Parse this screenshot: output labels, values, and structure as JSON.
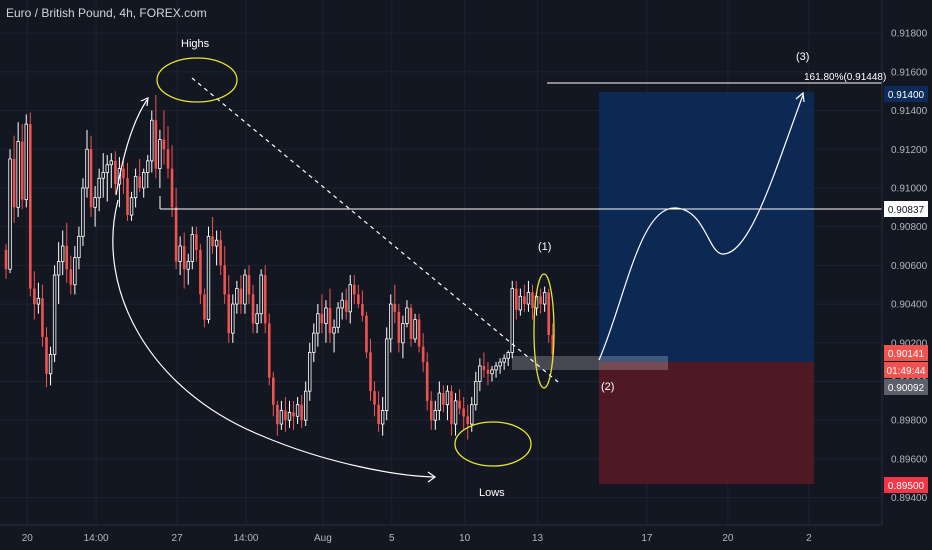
{
  "chart_title": "Euro / British Pound, 4h, FOREX.com",
  "colors": {
    "background": "#131722",
    "grid": "#1f2331",
    "up": "#ffffff",
    "down": "#ef5350",
    "text": "#b2b5be",
    "yellow": "#e6e62e",
    "target_zone": "#0c2d5c",
    "stop_zone": "#5a1a24",
    "level_line": "#ffffff"
  },
  "annotations": {
    "highs": "Highs",
    "lows": "Lows",
    "point1": "(1)",
    "point2": "(2)",
    "point3": "(3)",
    "fib": "161.80%(0.91448)"
  },
  "price_tags": {
    "level": "0.90837",
    "target": "0.91400",
    "last": "0.90141",
    "timer": "01:49:44",
    "bid": "0.90092",
    "stop": "0.89500"
  },
  "chart_data": {
    "type": "candlestick",
    "title": "Euro / British Pound, 4h, FOREX.com",
    "ylim": [
      0.8931,
      0.9193
    ],
    "y_ticks": [
      "0.91800",
      "0.91600",
      "0.91400",
      "0.91200",
      "0.91000",
      "0.90800",
      "0.90600",
      "0.90400",
      "0.90200",
      "0.90000",
      "0.89800",
      "0.89600",
      "0.89400"
    ],
    "x_ticks": [
      {
        "label": "20",
        "bar": 5
      },
      {
        "label": "14:00",
        "bar": 22
      },
      {
        "label": "27",
        "bar": 42
      },
      {
        "label": "14:00",
        "bar": 59
      },
      {
        "label": "Aug",
        "bar": 78
      },
      {
        "label": "5",
        "bar": 95
      },
      {
        "label": "10",
        "bar": 113
      },
      {
        "label": "13",
        "bar": 131
      },
      {
        "label": "17",
        "bar": 158
      },
      {
        "label": "20",
        "bar": 178
      },
      {
        "label": "2",
        "bar": 198
      }
    ],
    "candles": [
      [
        0.9068,
        0.9071,
        0.9053,
        0.9058
      ],
      [
        0.9058,
        0.912,
        0.9056,
        0.9115
      ],
      [
        0.9115,
        0.9127,
        0.9082,
        0.909
      ],
      [
        0.909,
        0.9134,
        0.9085,
        0.9124
      ],
      [
        0.9124,
        0.9133,
        0.9089,
        0.9094
      ],
      [
        0.9094,
        0.9138,
        0.909,
        0.9133
      ],
      [
        0.9133,
        0.9139,
        0.9044,
        0.9048
      ],
      [
        0.9048,
        0.9057,
        0.9032,
        0.904
      ],
      [
        0.904,
        0.9051,
        0.9035,
        0.9043
      ],
      [
        0.9043,
        0.905,
        0.9018,
        0.9023
      ],
      [
        0.9023,
        0.9028,
        0.8997,
        0.9004
      ],
      [
        0.9004,
        0.9018,
        0.8998,
        0.9014
      ],
      [
        0.9014,
        0.906,
        0.901,
        0.9055
      ],
      [
        0.9055,
        0.9072,
        0.904,
        0.9062
      ],
      [
        0.9062,
        0.9078,
        0.9055,
        0.907
      ],
      [
        0.907,
        0.9082,
        0.9051,
        0.9058
      ],
      [
        0.9058,
        0.9065,
        0.9045,
        0.905
      ],
      [
        0.905,
        0.907,
        0.9045,
        0.9064
      ],
      [
        0.9064,
        0.908,
        0.9058,
        0.9075
      ],
      [
        0.9075,
        0.9105,
        0.907,
        0.91
      ],
      [
        0.91,
        0.913,
        0.9095,
        0.912
      ],
      [
        0.912,
        0.9127,
        0.9085,
        0.909
      ],
      [
        0.909,
        0.9101,
        0.908,
        0.9095
      ],
      [
        0.9095,
        0.911,
        0.9088,
        0.9105
      ],
      [
        0.9105,
        0.9118,
        0.9095,
        0.9108
      ],
      [
        0.9108,
        0.9117,
        0.9093,
        0.9112
      ],
      [
        0.9112,
        0.9118,
        0.91,
        0.9114
      ],
      [
        0.9114,
        0.9119,
        0.9097,
        0.9102
      ],
      [
        0.9102,
        0.9116,
        0.909,
        0.911
      ],
      [
        0.911,
        0.9114,
        0.9097,
        0.9105
      ],
      [
        0.9105,
        0.9113,
        0.9083,
        0.9086
      ],
      [
        0.9086,
        0.9098,
        0.9083,
        0.9095
      ],
      [
        0.9095,
        0.911,
        0.909,
        0.9106
      ],
      [
        0.9106,
        0.9115,
        0.9098,
        0.91
      ],
      [
        0.91,
        0.911,
        0.9095,
        0.9108
      ],
      [
        0.9108,
        0.9117,
        0.91,
        0.9114
      ],
      [
        0.9114,
        0.914,
        0.9108,
        0.9135
      ],
      [
        0.9135,
        0.9148,
        0.9105,
        0.911
      ],
      [
        0.911,
        0.913,
        0.91,
        0.9125
      ],
      [
        0.9125,
        0.914,
        0.9112,
        0.912
      ],
      [
        0.912,
        0.9132,
        0.9105,
        0.911
      ],
      [
        0.911,
        0.9122,
        0.9085,
        0.909
      ],
      [
        0.909,
        0.91,
        0.9058,
        0.9062
      ],
      [
        0.9062,
        0.9075,
        0.9055,
        0.907
      ],
      [
        0.907,
        0.9077,
        0.9048,
        0.9058
      ],
      [
        0.9058,
        0.9066,
        0.905,
        0.9062
      ],
      [
        0.9062,
        0.908,
        0.9058,
        0.9076
      ],
      [
        0.9076,
        0.908,
        0.9062,
        0.9068
      ],
      [
        0.9068,
        0.9071,
        0.904,
        0.9045
      ],
      [
        0.9045,
        0.9048,
        0.9028,
        0.9032
      ],
      [
        0.9032,
        0.908,
        0.903,
        0.9075
      ],
      [
        0.9075,
        0.9085,
        0.9066,
        0.907
      ],
      [
        0.907,
        0.9078,
        0.906,
        0.9073
      ],
      [
        0.9073,
        0.9078,
        0.9055,
        0.906
      ],
      [
        0.906,
        0.907,
        0.904,
        0.9045
      ],
      [
        0.9045,
        0.9055,
        0.902,
        0.9025
      ],
      [
        0.9025,
        0.9045,
        0.902,
        0.904
      ],
      [
        0.904,
        0.9052,
        0.9035,
        0.9048
      ],
      [
        0.9048,
        0.9055,
        0.9035,
        0.904
      ],
      [
        0.904,
        0.9058,
        0.9035,
        0.9055
      ],
      [
        0.9055,
        0.906,
        0.904,
        0.9045
      ],
      [
        0.9045,
        0.905,
        0.9025,
        0.903
      ],
      [
        0.903,
        0.904,
        0.9025,
        0.9035
      ],
      [
        0.9035,
        0.9058,
        0.903,
        0.9055
      ],
      [
        0.9055,
        0.906,
        0.9025,
        0.903
      ],
      [
        0.903,
        0.9035,
        0.8998,
        0.9002
      ],
      [
        0.9002,
        0.9005,
        0.8982,
        0.8988
      ],
      [
        0.8988,
        0.899,
        0.8972,
        0.8978
      ],
      [
        0.8978,
        0.899,
        0.8975,
        0.8985
      ],
      [
        0.8985,
        0.8992,
        0.8974,
        0.898
      ],
      [
        0.898,
        0.899,
        0.8976,
        0.8984
      ],
      [
        0.8984,
        0.899,
        0.8975,
        0.8982
      ],
      [
        0.8982,
        0.8992,
        0.8978,
        0.8988
      ],
      [
        0.8988,
        0.8993,
        0.8976,
        0.898
      ],
      [
        0.898,
        0.9,
        0.8977,
        0.8995
      ],
      [
        0.8995,
        0.902,
        0.899,
        0.9015
      ],
      [
        0.9015,
        0.903,
        0.901,
        0.9025
      ],
      [
        0.9025,
        0.904,
        0.9018,
        0.9035
      ],
      [
        0.9035,
        0.9045,
        0.9025,
        0.903
      ],
      [
        0.903,
        0.9042,
        0.902,
        0.9038
      ],
      [
        0.9038,
        0.9048,
        0.902,
        0.9025
      ],
      [
        0.9025,
        0.9032,
        0.9015,
        0.9028
      ],
      [
        0.9028,
        0.9041,
        0.9025,
        0.9038
      ],
      [
        0.9038,
        0.9046,
        0.9032,
        0.9042
      ],
      [
        0.9042,
        0.9048,
        0.9032,
        0.9036
      ],
      [
        0.9036,
        0.9055,
        0.903,
        0.905
      ],
      [
        0.905,
        0.9055,
        0.904,
        0.9045
      ],
      [
        0.9045,
        0.905,
        0.9038,
        0.904
      ],
      [
        0.904,
        0.9047,
        0.9031,
        0.9034
      ],
      [
        0.9034,
        0.9036,
        0.9012,
        0.9015
      ],
      [
        0.9015,
        0.9022,
        0.899,
        0.8995
      ],
      [
        0.8995,
        0.9,
        0.8982,
        0.8988
      ],
      [
        0.8988,
        0.8995,
        0.8974,
        0.8978
      ],
      [
        0.8978,
        0.8992,
        0.8972,
        0.8985
      ],
      [
        0.8985,
        0.9028,
        0.898,
        0.9022
      ],
      [
        0.9022,
        0.9045,
        0.9015,
        0.904
      ],
      [
        0.904,
        0.905,
        0.903,
        0.9036
      ],
      [
        0.9036,
        0.904,
        0.9015,
        0.902
      ],
      [
        0.902,
        0.9034,
        0.9012,
        0.903
      ],
      [
        0.903,
        0.9042,
        0.9028,
        0.9038
      ],
      [
        0.9038,
        0.904,
        0.9018,
        0.9022
      ],
      [
        0.9022,
        0.9035,
        0.902,
        0.9032
      ],
      [
        0.9032,
        0.9035,
        0.9015,
        0.9018
      ],
      [
        0.9018,
        0.9025,
        0.9005,
        0.901
      ],
      [
        0.901,
        0.9015,
        0.8985,
        0.899
      ],
      [
        0.899,
        0.8995,
        0.8975,
        0.898
      ],
      [
        0.898,
        0.899,
        0.8975,
        0.8985
      ],
      [
        0.8985,
        0.9,
        0.898,
        0.8994
      ],
      [
        0.8994,
        0.8998,
        0.8984,
        0.8988
      ],
      [
        0.8988,
        0.8998,
        0.898,
        0.8995
      ],
      [
        0.8995,
        0.8998,
        0.8972,
        0.8978
      ],
      [
        0.8978,
        0.8994,
        0.8972,
        0.899
      ],
      [
        0.899,
        0.8996,
        0.8983,
        0.8986
      ],
      [
        0.8986,
        0.8992,
        0.8975,
        0.8982
      ],
      [
        0.8982,
        0.8988,
        0.897,
        0.8978
      ],
      [
        0.8978,
        0.8992,
        0.8974,
        0.8988
      ],
      [
        0.8988,
        0.9005,
        0.8985,
        0.9
      ],
      [
        0.9,
        0.9012,
        0.8995,
        0.9008
      ],
      [
        0.9008,
        0.9015,
        0.9002,
        0.9006
      ],
      [
        0.9006,
        0.901,
        0.8998,
        0.9004
      ],
      [
        0.9004,
        0.9008,
        0.9,
        0.9006
      ],
      [
        0.9006,
        0.901,
        0.9002,
        0.9008
      ],
      [
        0.9008,
        0.9012,
        0.9004,
        0.901
      ],
      [
        0.901,
        0.9014,
        0.9006,
        0.9012
      ],
      [
        0.9012,
        0.9016,
        0.9008,
        0.9015
      ],
      [
        0.9015,
        0.9052,
        0.9012,
        0.9048
      ],
      [
        0.9048,
        0.9052,
        0.9032,
        0.9037
      ],
      [
        0.9037,
        0.9048,
        0.9034,
        0.9044
      ],
      [
        0.9044,
        0.905,
        0.9036,
        0.904
      ],
      [
        0.904,
        0.9052,
        0.9036,
        0.9046
      ],
      [
        0.9046,
        0.905,
        0.9032,
        0.9038
      ],
      [
        0.9038,
        0.9046,
        0.9034,
        0.9044
      ],
      [
        0.9044,
        0.9048,
        0.9035,
        0.904
      ],
      [
        0.904,
        0.9049,
        0.9036,
        0.9046
      ],
      [
        0.9046,
        0.9048,
        0.902,
        0.9024
      ],
      [
        0.9024,
        0.903,
        0.901,
        0.9014
      ]
    ]
  }
}
